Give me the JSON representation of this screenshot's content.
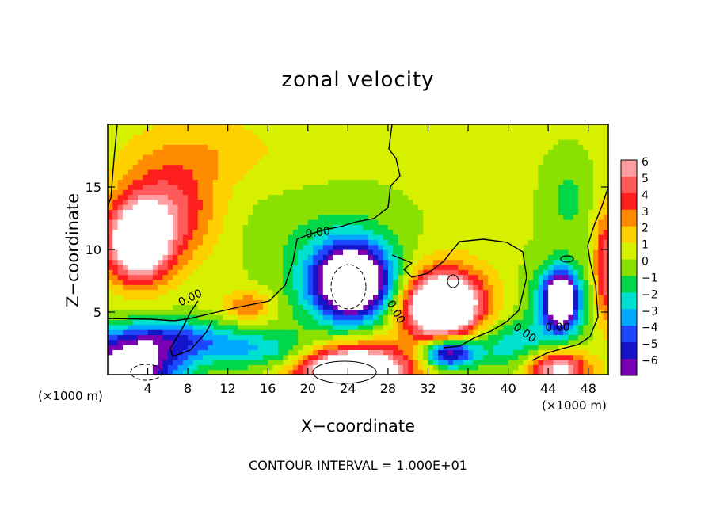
{
  "chart_data": {
    "type": "heatmap",
    "title": "zonal velocity",
    "xlabel": "X−coordinate",
    "ylabel": "Z−coordinate",
    "x_unit_left": "(×1000 m)",
    "x_unit_right": "(×1000 m)",
    "xlim": [
      0,
      50
    ],
    "ylim": [
      0,
      20
    ],
    "x_ticks": [
      4,
      8,
      12,
      16,
      20,
      24,
      28,
      32,
      36,
      40,
      44,
      48
    ],
    "x_tick_labels": [
      "4",
      "8",
      "12",
      "16",
      "20",
      "24",
      "28",
      "32",
      "36",
      "40",
      "44",
      "48"
    ],
    "y_ticks": [
      5,
      10,
      15
    ],
    "y_tick_labels": [
      "5",
      "10",
      "15"
    ],
    "colorbar": {
      "levels": [
        6,
        5,
        4,
        3,
        2,
        1,
        0,
        -1,
        -2,
        -3,
        -4,
        -5,
        -6
      ],
      "labels": [
        "6",
        "5",
        "4",
        "3",
        "2",
        "1",
        "0",
        "−1",
        "−2",
        "−3",
        "−4",
        "−5",
        "−6"
      ],
      "colors": [
        "#ff9ea0",
        "#ff5a5a",
        "#ff1e1e",
        "#ff8c00",
        "#ffd000",
        "#d6f000",
        "#8ae000",
        "#00d84a",
        "#00e0d0",
        "#00a8ff",
        "#1e46ff",
        "#1414c8",
        "#7a00b4"
      ]
    },
    "contour_labels": [
      "0.00",
      "0.00",
      "0.00",
      "0.00",
      "0.00"
    ],
    "annotation": "CONTOUR INTERVAL = 1.000E+01",
    "features": [
      {
        "x": 3.0,
        "z": 10.5,
        "rx": 3.0,
        "rz": 3.0,
        "u": 9
      },
      {
        "x": 6.0,
        "z": 13.0,
        "rx": 5.0,
        "rz": 4.0,
        "u": 4.5
      },
      {
        "x": 24.5,
        "z": 7.5,
        "rx": 3.5,
        "rz": 2.7,
        "u": -9
      },
      {
        "x": 24.0,
        "z": 7.5,
        "rx": 5.5,
        "rz": 4.2,
        "u": -4
      },
      {
        "x": 33.5,
        "z": 5.5,
        "rx": 3.2,
        "rz": 2.3,
        "u": 9
      },
      {
        "x": 33.5,
        "z": 5.5,
        "rx": 5.0,
        "rz": 3.5,
        "u": 4.5
      },
      {
        "x": 45.3,
        "z": 6.0,
        "rx": 1.4,
        "rz": 2.0,
        "u": -9
      },
      {
        "x": 45.0,
        "z": 6.0,
        "rx": 2.8,
        "rz": 3.0,
        "u": -4
      },
      {
        "x": 24.5,
        "z": 0.3,
        "rx": 4.5,
        "rz": 1.6,
        "u": 9
      },
      {
        "x": 24.5,
        "z": 0.5,
        "rx": 6.0,
        "rz": 2.6,
        "u": 4.5
      },
      {
        "x": 2.0,
        "z": 0.6,
        "rx": 5.0,
        "rz": 2.3,
        "u": -9
      },
      {
        "x": 34.0,
        "z": 1.8,
        "rx": 2.5,
        "rz": 1.2,
        "u": -8
      },
      {
        "x": 45.0,
        "z": 0.5,
        "rx": 3.0,
        "rz": 1.5,
        "u": 7
      },
      {
        "x": 14.0,
        "z": 5.5,
        "rx": 2.5,
        "rz": 1.2,
        "u": 3
      },
      {
        "x": 6.0,
        "z": 3.0,
        "rx": 6.0,
        "rz": 1.5,
        "u": -4
      },
      {
        "x": 15.0,
        "z": 2.0,
        "rx": 7.0,
        "rz": 1.5,
        "u": -3
      },
      {
        "x": 40.0,
        "z": 2.5,
        "rx": 5.0,
        "rz": 2.0,
        "u": -3
      },
      {
        "x": 49.8,
        "z": 8.5,
        "rx": 1.2,
        "rz": 4.5,
        "u": 5
      },
      {
        "x": 46.0,
        "z": 14.0,
        "rx": 2.0,
        "rz": 3.0,
        "u": -1.5
      },
      {
        "x": 16.0,
        "z": 12.0,
        "rx": 8.0,
        "rz": 3.0,
        "u": -0.5
      },
      {
        "x": 10.0,
        "z": 18.0,
        "rx": 8.0,
        "rz": 3.0,
        "u": 1.5
      }
    ]
  }
}
